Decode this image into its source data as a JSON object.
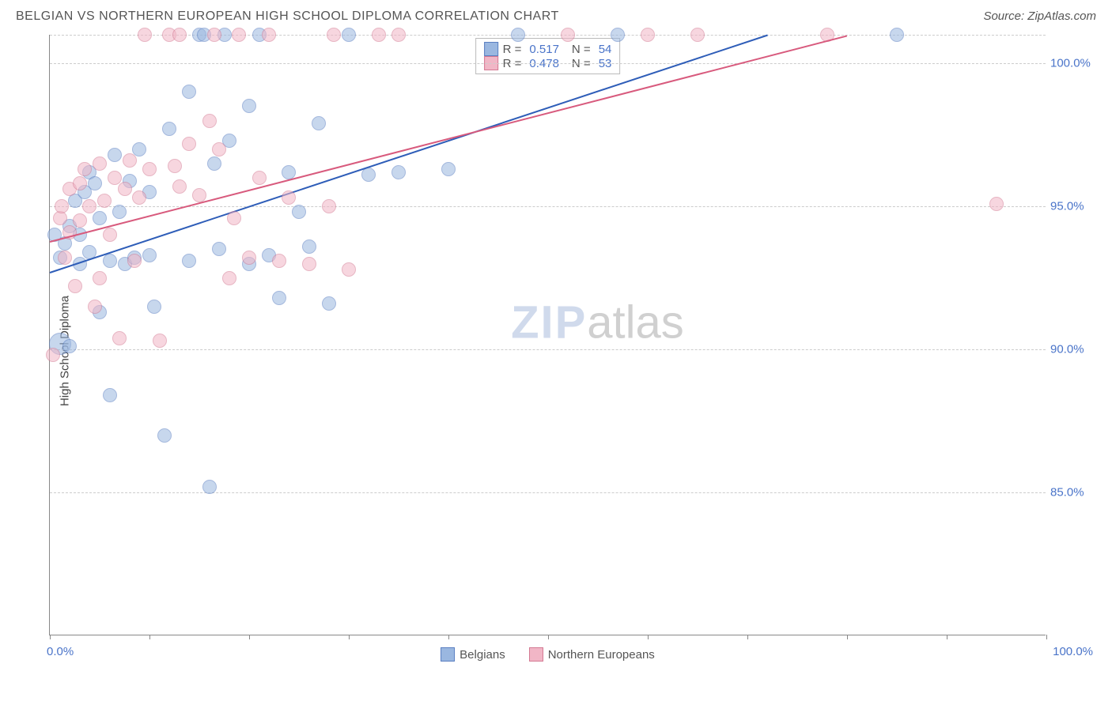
{
  "header": {
    "title": "BELGIAN VS NORTHERN EUROPEAN HIGH SCHOOL DIPLOMA CORRELATION CHART",
    "source": "Source: ZipAtlas.com"
  },
  "watermark": {
    "bold": "ZIP",
    "light": "atlas"
  },
  "chart": {
    "type": "scatter",
    "ylabel": "High School Diploma",
    "xlim": [
      0,
      100
    ],
    "ylim": [
      80,
      101
    ],
    "x_ticks": [
      0,
      10,
      20,
      30,
      40,
      50,
      60,
      70,
      80,
      90,
      100
    ],
    "x_tick_labels": {
      "0": "0.0%",
      "100": "100.0%"
    },
    "y_gridlines": [
      85.0,
      90.0,
      95.0,
      100.0,
      101.0
    ],
    "y_tick_labels": {
      "85": "85.0%",
      "90": "90.0%",
      "95": "95.0%",
      "100": "100.0%"
    },
    "background_color": "#ffffff",
    "grid_color": "#cccccc",
    "axis_color": "#888888",
    "label_color": "#4a74c9",
    "point_radius": 9,
    "point_opacity": 0.55,
    "series": [
      {
        "name": "Belgians",
        "fill": "#9ab7e0",
        "stroke": "#5a7fc2",
        "trend": {
          "x1": 0,
          "y1": 92.7,
          "x2": 72,
          "y2": 101.0,
          "color": "#2e5db8",
          "width": 2
        },
        "stats": {
          "R": "0.517",
          "N": "54"
        },
        "points": [
          {
            "x": 0.5,
            "y": 94.0
          },
          {
            "x": 1.0,
            "y": 93.2
          },
          {
            "x": 1.0,
            "y": 90.2,
            "r": 14
          },
          {
            "x": 1.5,
            "y": 93.7
          },
          {
            "x": 2.0,
            "y": 94.3
          },
          {
            "x": 2.0,
            "y": 90.1
          },
          {
            "x": 2.5,
            "y": 95.2
          },
          {
            "x": 3.0,
            "y": 94.0
          },
          {
            "x": 3.0,
            "y": 93.0
          },
          {
            "x": 3.5,
            "y": 95.5
          },
          {
            "x": 4.0,
            "y": 96.2
          },
          {
            "x": 4.0,
            "y": 93.4
          },
          {
            "x": 4.5,
            "y": 95.8
          },
          {
            "x": 5.0,
            "y": 94.6
          },
          {
            "x": 5.0,
            "y": 91.3
          },
          {
            "x": 6.0,
            "y": 88.4
          },
          {
            "x": 6.0,
            "y": 93.1
          },
          {
            "x": 6.5,
            "y": 96.8
          },
          {
            "x": 7.0,
            "y": 94.8
          },
          {
            "x": 7.5,
            "y": 93.0
          },
          {
            "x": 8.0,
            "y": 95.9
          },
          {
            "x": 8.5,
            "y": 93.2
          },
          {
            "x": 9.0,
            "y": 97.0
          },
          {
            "x": 10.0,
            "y": 95.5
          },
          {
            "x": 10.0,
            "y": 93.3
          },
          {
            "x": 10.5,
            "y": 91.5
          },
          {
            "x": 11.5,
            "y": 87.0
          },
          {
            "x": 12.0,
            "y": 97.7
          },
          {
            "x": 14.0,
            "y": 93.1
          },
          {
            "x": 14.0,
            "y": 99.0
          },
          {
            "x": 15.0,
            "y": 101.0
          },
          {
            "x": 15.5,
            "y": 101.0
          },
          {
            "x": 16.0,
            "y": 85.2
          },
          {
            "x": 16.5,
            "y": 96.5
          },
          {
            "x": 17.0,
            "y": 93.5
          },
          {
            "x": 17.5,
            "y": 101.0
          },
          {
            "x": 18.0,
            "y": 97.3
          },
          {
            "x": 20.0,
            "y": 93.0
          },
          {
            "x": 20.0,
            "y": 98.5
          },
          {
            "x": 21.0,
            "y": 101.0
          },
          {
            "x": 22.0,
            "y": 93.3
          },
          {
            "x": 23.0,
            "y": 91.8
          },
          {
            "x": 24.0,
            "y": 96.2
          },
          {
            "x": 25.0,
            "y": 94.8
          },
          {
            "x": 26.0,
            "y": 93.6
          },
          {
            "x": 27.0,
            "y": 97.9
          },
          {
            "x": 28.0,
            "y": 91.6
          },
          {
            "x": 30.0,
            "y": 101.0
          },
          {
            "x": 32.0,
            "y": 96.1
          },
          {
            "x": 35.0,
            "y": 96.2
          },
          {
            "x": 40.0,
            "y": 96.3
          },
          {
            "x": 47.0,
            "y": 101.0
          },
          {
            "x": 57.0,
            "y": 101.0
          },
          {
            "x": 85.0,
            "y": 101.0
          }
        ]
      },
      {
        "name": "Northern Europeans",
        "fill": "#f1b6c6",
        "stroke": "#d47a93",
        "trend": {
          "x1": 0,
          "y1": 93.8,
          "x2": 80,
          "y2": 101.0,
          "color": "#d85a7d",
          "width": 2
        },
        "stats": {
          "R": "0.478",
          "N": "53"
        },
        "points": [
          {
            "x": 0.3,
            "y": 89.8
          },
          {
            "x": 1.0,
            "y": 94.6
          },
          {
            "x": 1.2,
            "y": 95.0
          },
          {
            "x": 1.5,
            "y": 93.2
          },
          {
            "x": 2.0,
            "y": 94.1
          },
          {
            "x": 2.0,
            "y": 95.6
          },
          {
            "x": 2.5,
            "y": 92.2
          },
          {
            "x": 3.0,
            "y": 95.8
          },
          {
            "x": 3.0,
            "y": 94.5
          },
          {
            "x": 3.5,
            "y": 96.3
          },
          {
            "x": 4.0,
            "y": 95.0
          },
          {
            "x": 4.5,
            "y": 91.5
          },
          {
            "x": 5.0,
            "y": 92.5
          },
          {
            "x": 5.0,
            "y": 96.5
          },
          {
            "x": 5.5,
            "y": 95.2
          },
          {
            "x": 6.0,
            "y": 94.0
          },
          {
            "x": 6.5,
            "y": 96.0
          },
          {
            "x": 7.0,
            "y": 90.4
          },
          {
            "x": 7.5,
            "y": 95.6
          },
          {
            "x": 8.0,
            "y": 96.6
          },
          {
            "x": 8.5,
            "y": 93.1
          },
          {
            "x": 9.0,
            "y": 95.3
          },
          {
            "x": 9.5,
            "y": 101.0
          },
          {
            "x": 10.0,
            "y": 96.3
          },
          {
            "x": 11.0,
            "y": 90.3
          },
          {
            "x": 12.0,
            "y": 101.0
          },
          {
            "x": 12.5,
            "y": 96.4
          },
          {
            "x": 13.0,
            "y": 95.7
          },
          {
            "x": 13.0,
            "y": 101.0
          },
          {
            "x": 14.0,
            "y": 97.2
          },
          {
            "x": 15.0,
            "y": 95.4
          },
          {
            "x": 16.0,
            "y": 98.0
          },
          {
            "x": 16.5,
            "y": 101.0
          },
          {
            "x": 17.0,
            "y": 97.0
          },
          {
            "x": 18.0,
            "y": 92.5
          },
          {
            "x": 18.5,
            "y": 94.6
          },
          {
            "x": 19.0,
            "y": 101.0
          },
          {
            "x": 20.0,
            "y": 93.2
          },
          {
            "x": 21.0,
            "y": 96.0
          },
          {
            "x": 22.0,
            "y": 101.0
          },
          {
            "x": 23.0,
            "y": 93.1
          },
          {
            "x": 24.0,
            "y": 95.3
          },
          {
            "x": 26.0,
            "y": 93.0
          },
          {
            "x": 28.0,
            "y": 95.0
          },
          {
            "x": 28.5,
            "y": 101.0
          },
          {
            "x": 30.0,
            "y": 92.8
          },
          {
            "x": 33.0,
            "y": 101.0
          },
          {
            "x": 35.0,
            "y": 101.0
          },
          {
            "x": 52.0,
            "y": 101.0
          },
          {
            "x": 60.0,
            "y": 101.0
          },
          {
            "x": 65.0,
            "y": 101.0
          },
          {
            "x": 78.0,
            "y": 101.0
          },
          {
            "x": 95.0,
            "y": 95.1
          }
        ]
      }
    ]
  }
}
